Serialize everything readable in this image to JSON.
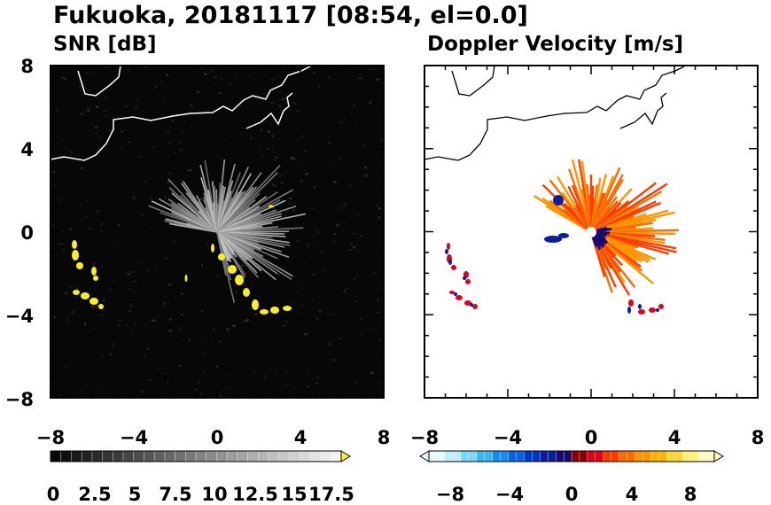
{
  "title": "Fukuoka, 20181117 [08:54, el=0.0]",
  "colors": {
    "snr_highlight": "#f5f023",
    "positive": [
      "#8b0000",
      "#e0001a",
      "#ff3b00",
      "#ff6a00",
      "#ff9500",
      "#ffb300",
      "#ffd43a",
      "#fff07a",
      "#fffbc2"
    ],
    "negative": [
      "#1a0a70",
      "#0a1d9a",
      "#0036c8",
      "#0a62e0",
      "#1a8cf0",
      "#40b4f8",
      "#7fd6fc",
      "#bdeeff",
      "#e6fbff"
    ]
  },
  "chart_data": [
    {
      "type": "heatmap",
      "subtitle": "SNR [dB]",
      "xlim": [
        -8,
        8
      ],
      "ylim": [
        -8,
        8
      ],
      "xticks": [
        "−8",
        "−4",
        "0",
        "4",
        "8"
      ],
      "yticks": [
        "8",
        "4",
        "0",
        "−4",
        "−8"
      ],
      "colorbar": {
        "range": [
          0,
          20
        ],
        "tick_labels": [
          "0",
          "2.5",
          "5",
          "7.5",
          "10",
          "12.5",
          "15",
          "17.5"
        ],
        "extend": "max"
      }
    },
    {
      "type": "heatmap",
      "subtitle": "Doppler Velocity [m/s]",
      "xlim": [
        -8,
        8
      ],
      "ylim": [
        -8,
        8
      ],
      "xticks": [
        "−8",
        "−4",
        "0",
        "4",
        "8"
      ],
      "colorbar": {
        "range": [
          -10,
          10
        ],
        "tick_labels": [
          "−8",
          "−4",
          "0",
          "4",
          "8"
        ],
        "extend": "both"
      }
    }
  ]
}
